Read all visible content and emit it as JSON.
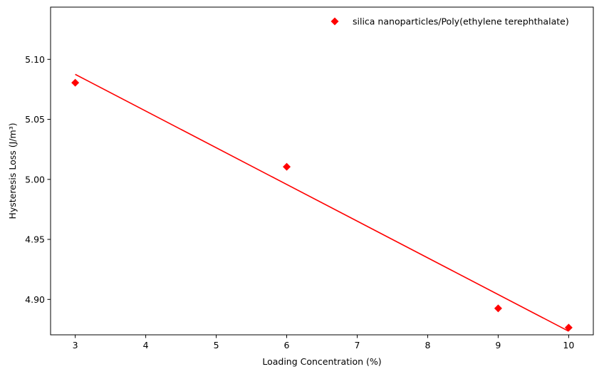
{
  "chart_data": {
    "type": "scatter",
    "title": "",
    "xlabel": "Loading Concentration (%)",
    "ylabel": "Hysteresis Loss (J/m³)",
    "xlim": [
      2.65,
      10.35
    ],
    "ylim": [
      4.8705,
      5.1435
    ],
    "xticks": [
      3,
      4,
      5,
      6,
      7,
      8,
      9,
      10
    ],
    "yticks": [
      4.9,
      4.95,
      5.0,
      5.05,
      5.1
    ],
    "xtick_labels": [
      "3",
      "4",
      "5",
      "6",
      "7",
      "8",
      "9",
      "10"
    ],
    "ytick_labels": [
      "4.90",
      "4.95",
      "5.00",
      "5.05",
      "5.10"
    ],
    "grid": false,
    "legend_position": "top-right",
    "series": [
      {
        "name": "silica nanoparticles/Poly(ethylene terephthalate)",
        "marker": "diamond",
        "color": "#ff0000",
        "x": [
          3,
          6,
          9,
          10
        ],
        "y": [
          5.0805,
          5.0105,
          4.8925,
          4.8765
        ]
      }
    ],
    "fit_line": {
      "color": "#ff0000",
      "x": [
        3,
        10
      ],
      "y": [
        5.0875,
        4.8735
      ]
    }
  }
}
